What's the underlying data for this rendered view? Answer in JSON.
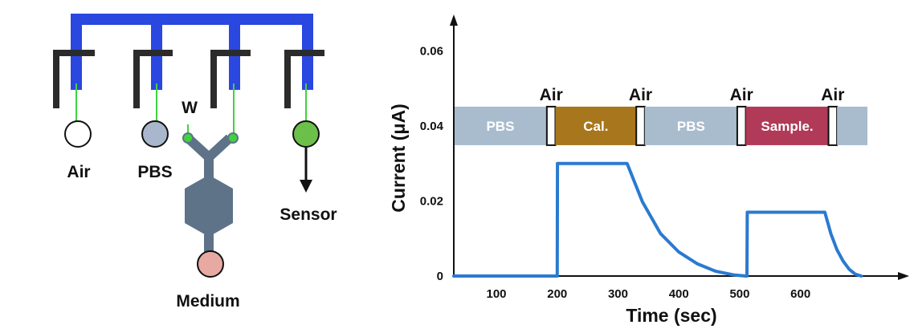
{
  "colors": {
    "channel": "#2a47e0",
    "channel_light": "#6f86ff",
    "manifold": "#2b2b2b",
    "chamber": "#5e7388",
    "green_line": "#3fd23f",
    "air_circle": "#ffffff",
    "pbs_circle": "#a9b7cc",
    "sensor_circle": "#6cc04a",
    "medium_circle": "#e8a9a2",
    "band_pbs": "#a9bccd",
    "band_cal": "#a8761c",
    "band_sample": "#b03a58",
    "trace": "#2a7ad0"
  },
  "schematic": {
    "labels": {
      "air": "Air",
      "pbs": "PBS",
      "w": "W",
      "sensor": "Sensor",
      "medium": "Medium"
    }
  },
  "chart_data": {
    "type": "line",
    "xlabel": "Time (sec)",
    "ylabel": "Current (μA)",
    "xlim": [
      30,
      710
    ],
    "ylim": [
      0,
      0.065
    ],
    "xticks": [
      100,
      200,
      300,
      400,
      500,
      600
    ],
    "yticks": [
      {
        "value": 0,
        "label": "0"
      },
      {
        "value": 0.02,
        "label": "0.02"
      },
      {
        "value": 0.04,
        "label": "0.04"
      },
      {
        "value": 0.06,
        "label": "0.06"
      }
    ],
    "band": {
      "y_center": 0.04,
      "segments": [
        {
          "label": "PBS",
          "start": 30,
          "end": 183,
          "color": "#a9bccd"
        },
        {
          "label": "",
          "start": 183,
          "end": 197,
          "color": "#ffffff",
          "marker": "Air"
        },
        {
          "label": "Cal.",
          "start": 197,
          "end": 330,
          "color": "#a8761c"
        },
        {
          "label": "",
          "start": 330,
          "end": 344,
          "color": "#ffffff",
          "marker": "Air"
        },
        {
          "label": "PBS",
          "start": 344,
          "end": 496,
          "color": "#a9bccd"
        },
        {
          "label": "",
          "start": 496,
          "end": 510,
          "color": "#ffffff",
          "marker": "Air"
        },
        {
          "label": "Sample.",
          "start": 510,
          "end": 646,
          "color": "#b03a58"
        },
        {
          "label": "",
          "start": 646,
          "end": 660,
          "color": "#ffffff",
          "marker": "Air"
        },
        {
          "label": "",
          "start": 660,
          "end": 710,
          "color": "#a9bccd"
        }
      ]
    },
    "series": [
      {
        "x": [
          30,
          200,
          200.5,
          220,
          300,
          315,
          340,
          370,
          400,
          430,
          460,
          490,
          510,
          512,
          512.5,
          530,
          640,
          650,
          660,
          670,
          680,
          690,
          700
        ],
        "y": [
          0,
          0,
          0.03,
          0.03,
          0.03,
          0.03,
          0.0198,
          0.0113,
          0.0064,
          0.0033,
          0.0013,
          0.0003,
          0,
          0,
          0.017,
          0.017,
          0.017,
          0.0112,
          0.007,
          0.004,
          0.0018,
          0.0005,
          0
        ]
      }
    ]
  }
}
